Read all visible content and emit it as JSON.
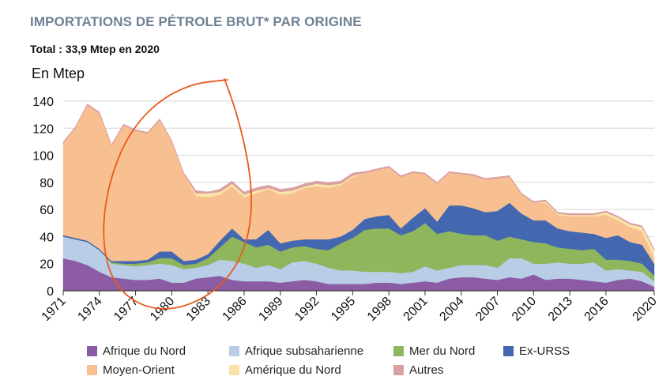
{
  "chart_data": {
    "type": "area",
    "stacked": true,
    "title": "IMPORTATIONS DE PÉTROLE BRUT* PAR ORIGINE",
    "subtitle": "Total : 33,9 Mtep en 2020",
    "ylabel": "En Mtep",
    "ylim": [
      0,
      140
    ],
    "yticks": [
      0,
      20,
      40,
      60,
      80,
      100,
      120,
      140
    ],
    "x": [
      1971,
      1972,
      1973,
      1974,
      1975,
      1976,
      1977,
      1978,
      1979,
      1980,
      1981,
      1982,
      1983,
      1984,
      1985,
      1986,
      1987,
      1988,
      1989,
      1990,
      1991,
      1992,
      1993,
      1994,
      1995,
      1996,
      1997,
      1998,
      1999,
      2000,
      2001,
      2002,
      2003,
      2004,
      2005,
      2006,
      2007,
      2008,
      2009,
      2010,
      2011,
      2012,
      2013,
      2014,
      2015,
      2016,
      2017,
      2018,
      2019,
      2020
    ],
    "xtick_labels": [
      "1971",
      "1974",
      "1977",
      "1980",
      "1983",
      "1986",
      "1989",
      "1992",
      "1995",
      "1998",
      "2001",
      "2004",
      "2007",
      "2010",
      "2013",
      "2016",
      "2020"
    ],
    "xtick_years": [
      1971,
      1974,
      1977,
      1980,
      1983,
      1986,
      1989,
      1992,
      1995,
      1998,
      2001,
      2004,
      2007,
      2010,
      2013,
      2016,
      2020
    ],
    "series": [
      {
        "name": "Afrique du Nord",
        "color": "#8b5ba4",
        "values": [
          24,
          22,
          19,
          14,
          10,
          9,
          8,
          8,
          9,
          6,
          6,
          9,
          10,
          11,
          8,
          7,
          7,
          7,
          6,
          7,
          8,
          7,
          5,
          5,
          5,
          5,
          6,
          6,
          5,
          6,
          7,
          6,
          9,
          10,
          10,
          9,
          8,
          10,
          9,
          12,
          8,
          9,
          9,
          8,
          7,
          6,
          8,
          9,
          7,
          3
        ]
      },
      {
        "name": "Afrique subsaharienne",
        "color": "#b9cde6",
        "values": [
          16,
          16,
          17,
          16,
          10,
          10,
          10,
          11,
          11,
          13,
          10,
          8,
          9,
          12,
          14,
          13,
          10,
          12,
          10,
          14,
          14,
          13,
          12,
          10,
          10,
          9,
          8,
          8,
          8,
          8,
          11,
          9,
          8,
          9,
          9,
          10,
          9,
          14,
          15,
          8,
          12,
          12,
          11,
          12,
          14,
          9,
          8,
          6,
          7,
          4
        ]
      },
      {
        "name": "Mer du Nord",
        "color": "#8fb65c",
        "values": [
          0,
          0,
          0,
          0,
          1,
          1,
          2,
          2,
          4,
          5,
          3,
          3,
          5,
          9,
          18,
          16,
          15,
          15,
          13,
          11,
          11,
          11,
          13,
          20,
          24,
          31,
          32,
          32,
          28,
          30,
          32,
          27,
          27,
          23,
          22,
          22,
          20,
          16,
          14,
          16,
          15,
          11,
          11,
          10,
          10,
          8,
          7,
          7,
          6,
          4
        ]
      },
      {
        "name": "Ex-URSS",
        "color": "#4468b0",
        "values": [
          1,
          1,
          1,
          1,
          1,
          2,
          2,
          2,
          5,
          5,
          3,
          3,
          3,
          5,
          6,
          2,
          6,
          11,
          6,
          5,
          5,
          7,
          8,
          5,
          6,
          8,
          9,
          10,
          5,
          10,
          11,
          9,
          19,
          21,
          20,
          17,
          22,
          25,
          19,
          16,
          17,
          14,
          13,
          13,
          11,
          16,
          18,
          14,
          14,
          9
        ]
      },
      {
        "name": "Moyen-Orient",
        "color": "#f8c090",
        "values": [
          68,
          81,
          100,
          100,
          85,
          100,
          96,
          93,
          97,
          81,
          64,
          47,
          42,
          34,
          31,
          31,
          34,
          30,
          36,
          35,
          38,
          39,
          38,
          38,
          39,
          34,
          34,
          35,
          38,
          33,
          25,
          28,
          24,
          23,
          24,
          24,
          24,
          19,
          14,
          13,
          13,
          10,
          11,
          12,
          13,
          17,
          11,
          11,
          10,
          4
        ]
      },
      {
        "name": "Amérique du Nord",
        "color": "#f9e4a8",
        "values": [
          0,
          0,
          0,
          0,
          0,
          0,
          0,
          0,
          0,
          0,
          0,
          2,
          3,
          2,
          2,
          2,
          2,
          1,
          2,
          2,
          1,
          2,
          2,
          1,
          1,
          0,
          0,
          0,
          0,
          0,
          0,
          0,
          0,
          0,
          0,
          0,
          0,
          0,
          0,
          0,
          1,
          1,
          1,
          1,
          1,
          2,
          2,
          2,
          3,
          6
        ]
      },
      {
        "name": "Autres",
        "color": "#dba0a2",
        "values": [
          1,
          1,
          1,
          1,
          1,
          1,
          1,
          1,
          1,
          1,
          1,
          2,
          1,
          2,
          2,
          2,
          2,
          2,
          2,
          2,
          2,
          2,
          2,
          2,
          2,
          1,
          1,
          1,
          1,
          1,
          1,
          1,
          1,
          1,
          1,
          1,
          1,
          1,
          1,
          1,
          1,
          1,
          1,
          1,
          1,
          1,
          1,
          1,
          1,
          1
        ]
      }
    ],
    "legend": [
      {
        "name": "Afrique du Nord",
        "color": "#8b5ba4"
      },
      {
        "name": "Afrique subsaharienne",
        "color": "#b9cde6"
      },
      {
        "name": "Mer du Nord",
        "color": "#8fb65c"
      },
      {
        "name": "Ex-URSS",
        "color": "#4468b0"
      },
      {
        "name": "Moyen-Orient",
        "color": "#f8c090"
      },
      {
        "name": "Amérique du Nord",
        "color": "#f9e4a8"
      },
      {
        "name": "Autres",
        "color": "#dba0a2"
      }
    ],
    "annotation": {
      "type": "hand-drawn-loop",
      "color": "#e85a1e",
      "span": [
        1975,
        1986
      ]
    }
  }
}
